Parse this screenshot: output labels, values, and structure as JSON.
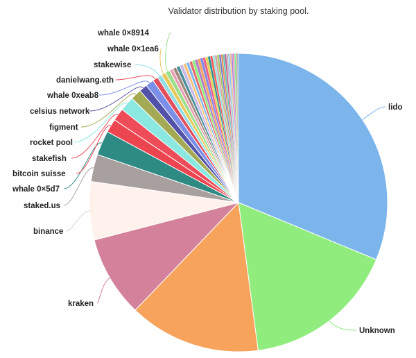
{
  "header": {
    "subtitle": "Validator distribution by staking pool."
  },
  "chart_data": {
    "type": "pie",
    "title": "",
    "subtitle": "Validator distribution by staking pool.",
    "start_angle_deg": 0,
    "direction": "clockwise",
    "slices": [
      {
        "name": "lido",
        "value": 31.7,
        "color": "#7cb5ec",
        "labeled": true
      },
      {
        "name": "Unknown",
        "value": 16.9,
        "color": "#90ed7d",
        "labeled": true
      },
      {
        "name": "",
        "value": 14.5,
        "color": "#f7a35c",
        "labeled": false
      },
      {
        "name": "kraken",
        "value": 8.9,
        "color": "#d4829b",
        "labeled": true
      },
      {
        "name": "binance",
        "value": 6.4,
        "color": "#fff2ec",
        "labeled": true
      },
      {
        "name": "staked.us",
        "value": 3.0,
        "color": "#a89f9f",
        "labeled": true
      },
      {
        "name": "whale 0×5d7",
        "value": 2.7,
        "color": "#2e8b84",
        "labeled": true
      },
      {
        "name": "bitcoin suisse",
        "value": 1.5,
        "color": "#ec4550",
        "labeled": true
      },
      {
        "name": "stakefish",
        "value": 1.4,
        "color": "#ee4c58",
        "labeled": true
      },
      {
        "name": "rocket pool",
        "value": 1.6,
        "color": "#8be8e0",
        "labeled": true
      },
      {
        "name": "figment",
        "value": 1.2,
        "color": "#a4aa53",
        "labeled": true
      },
      {
        "name": "celsius network",
        "value": 0.9,
        "color": "#5252a8",
        "labeled": true
      },
      {
        "name": "whale 0xeab8",
        "value": 0.9,
        "color": "#7c8fe8",
        "labeled": true
      },
      {
        "name": "danielwang.eth",
        "value": 0.6,
        "color": "#e44e5c",
        "labeled": true
      },
      {
        "name": "stakewise",
        "value": 0.5,
        "color": "#8fdde5",
        "labeled": true
      },
      {
        "name": "whale 0×1ea6",
        "value": 0.5,
        "color": "#e8c85a",
        "labeled": true
      },
      {
        "name": "whale 0×8914",
        "value": 0.5,
        "color": "#9adf8c",
        "labeled": true
      },
      {
        "name": "",
        "value": 0.4,
        "color": "#e9a0b4",
        "labeled": false
      },
      {
        "name": "",
        "value": 0.4,
        "color": "#a0887c",
        "labeled": false
      },
      {
        "name": "",
        "value": 0.4,
        "color": "#4a8f9b",
        "labeled": false
      },
      {
        "name": "",
        "value": 0.4,
        "color": "#c8b8e8",
        "labeled": false
      },
      {
        "name": "",
        "value": 0.35,
        "color": "#f5c07a",
        "labeled": false
      },
      {
        "name": "",
        "value": 0.35,
        "color": "#7cb5ec",
        "labeled": false
      },
      {
        "name": "",
        "value": 0.35,
        "color": "#e46b6b",
        "labeled": false
      },
      {
        "name": "",
        "value": 0.3,
        "color": "#90ed7d",
        "labeled": false
      },
      {
        "name": "",
        "value": 0.3,
        "color": "#b07cc6",
        "labeled": false
      },
      {
        "name": "",
        "value": 0.3,
        "color": "#f7a35c",
        "labeled": false
      },
      {
        "name": "",
        "value": 0.3,
        "color": "#8085e9",
        "labeled": false
      },
      {
        "name": "",
        "value": 0.28,
        "color": "#f15c80",
        "labeled": false
      },
      {
        "name": "",
        "value": 0.28,
        "color": "#e4d354",
        "labeled": false
      },
      {
        "name": "",
        "value": 0.26,
        "color": "#2b908f",
        "labeled": false
      },
      {
        "name": "",
        "value": 0.26,
        "color": "#f45b5b",
        "labeled": false
      },
      {
        "name": "",
        "value": 0.24,
        "color": "#91e8e1",
        "labeled": false
      },
      {
        "name": "",
        "value": 0.24,
        "color": "#d4a5a5",
        "labeled": false
      },
      {
        "name": "",
        "value": 0.22,
        "color": "#a8c95c",
        "labeled": false
      },
      {
        "name": "",
        "value": 0.22,
        "color": "#7c7cd4",
        "labeled": false
      },
      {
        "name": "",
        "value": 0.2,
        "color": "#e88c4c",
        "labeled": false
      },
      {
        "name": "",
        "value": 0.2,
        "color": "#5cc4b4",
        "labeled": false
      },
      {
        "name": "",
        "value": 0.2,
        "color": "#c45c8c",
        "labeled": false
      },
      {
        "name": "",
        "value": 0.18,
        "color": "#bcbcbc",
        "labeled": false
      },
      {
        "name": "",
        "value": 0.18,
        "color": "#8cc4ec",
        "labeled": false
      },
      {
        "name": "",
        "value": 0.18,
        "color": "#ecc48c",
        "labeled": false
      },
      {
        "name": "",
        "value": 0.16,
        "color": "#9c7cec",
        "labeled": false
      },
      {
        "name": "",
        "value": 0.16,
        "color": "#ec7c9c",
        "labeled": false
      },
      {
        "name": "",
        "value": 0.16,
        "color": "#7cec9c",
        "labeled": false
      },
      {
        "name": "",
        "value": 0.15,
        "color": "#c4a47c",
        "labeled": false
      },
      {
        "name": "",
        "value": 0.15,
        "color": "#7ca4c4",
        "labeled": false
      }
    ]
  }
}
